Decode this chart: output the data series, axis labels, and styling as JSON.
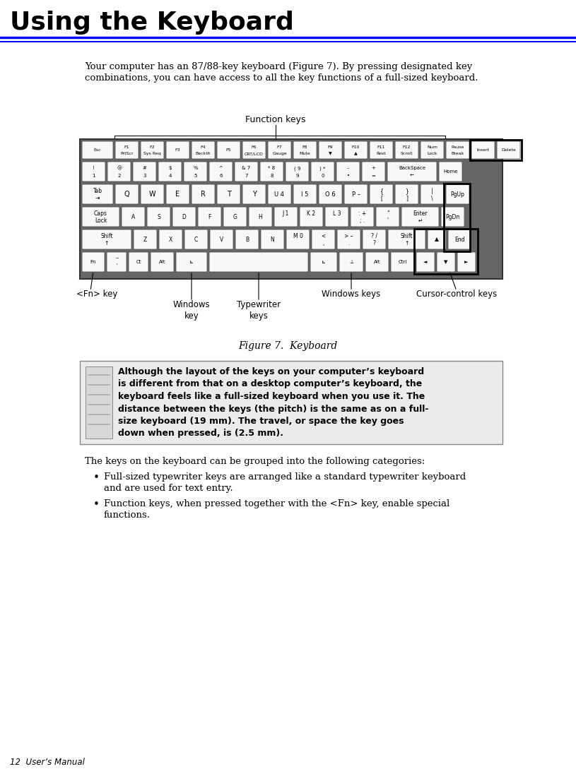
{
  "title": "Using the Keyboard",
  "subtitle_line1": "Your computer has an 87/88-key keyboard (Figure 7). By pressing designated key",
  "subtitle_line2": "combinations, you can have access to all the key functions of a full-sized keyboard.",
  "figure_caption": "Figure 7.  Keyboard",
  "note_text": "Although the layout of the keys on your computer’s keyboard\nis different from that on a desktop computer’s keyboard, the\nkeyboard feels like a full-sized keyboard when you use it. The\ndistance between the keys (the pitch) is the same as on a full-\nsize keyboard (19 mm). The travel, or space the key goes\ndown when pressed, is (2.5 mm).",
  "body_line1": "The keys on the keyboard can be grouped into the following categories:",
  "bullet1_line1": "Full-sized typewriter keys are arranged like a standard typewriter keyboard",
  "bullet1_line2": "and are used for text entry.",
  "bullet2_line1": "Function keys, when pressed together with the <Fn> key, enable special",
  "bullet2_line2": "functions.",
  "footer": "12  User’s Manual",
  "bg_color": "#ffffff",
  "text_color": "#000000",
  "blue_color": "#0000ff",
  "key_bg": "#f8f8f8",
  "kbd_bg": "#666666"
}
